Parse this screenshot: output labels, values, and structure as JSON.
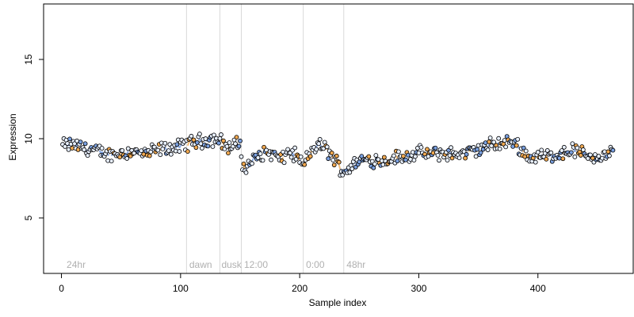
{
  "chart_data": {
    "type": "scatter",
    "xlabel": "Sample index",
    "ylabel": "Expression",
    "xlim": [
      -15,
      480
    ],
    "ylim": [
      1.5,
      18.5
    ],
    "x_ticks": [
      0,
      100,
      200,
      300,
      400
    ],
    "y_ticks": [
      5,
      10,
      15
    ],
    "grid": false,
    "legend": "none",
    "colors": {
      "axis": "#000000",
      "phase_line": "#d9d9d9",
      "phase_text": "#b0b0b0",
      "point_light": "#e8f0ff",
      "point_blue": "#7aa0e0",
      "point_orange": "#f0a850",
      "segment_blue": "#7aa0e0",
      "segment_orange": "#f0b060"
    },
    "phase_lines": [
      105,
      133,
      151,
      203,
      237
    ],
    "phase_labels": [
      {
        "text": "24hr",
        "x": 3
      },
      {
        "text": "dawn",
        "x": 106
      },
      {
        "text": "dusk",
        "x": 133
      },
      {
        "text": "12:00",
        "x": 152
      },
      {
        "text": "0:00",
        "x": 204
      },
      {
        "text": "48hr",
        "x": 238
      }
    ],
    "series_anchor_x": [
      0,
      10,
      20,
      30,
      40,
      50,
      60,
      70,
      80,
      90,
      100,
      110,
      120,
      130,
      135,
      140,
      145,
      150,
      152,
      155,
      160,
      165,
      170,
      175,
      180,
      185,
      190,
      195,
      200,
      203,
      205,
      210,
      215,
      220,
      225,
      230,
      235,
      238,
      245,
      250,
      260,
      270,
      280,
      290,
      300,
      310,
      320,
      330,
      340,
      350,
      360,
      370,
      380,
      390,
      395,
      400,
      410,
      420,
      430,
      440,
      450,
      460,
      463
    ],
    "series_anchor_y": [
      9.6,
      9.6,
      9.4,
      9.2,
      9.0,
      9.1,
      9.2,
      9.0,
      9.3,
      9.4,
      9.5,
      9.8,
      9.9,
      10.0,
      9.8,
      9.4,
      9.6,
      9.7,
      8.3,
      8.1,
      8.6,
      8.9,
      9.1,
      9.1,
      8.9,
      8.6,
      9.2,
      9.0,
      8.7,
      8.2,
      8.6,
      9.2,
      9.6,
      9.5,
      9.1,
      8.6,
      8.1,
      7.9,
      8.4,
      8.6,
      8.7,
      8.6,
      8.8,
      8.9,
      9.1,
      9.0,
      9.1,
      9.0,
      9.1,
      9.3,
      9.6,
      9.7,
      9.8,
      9.0,
      8.8,
      8.9,
      8.9,
      9.1,
      9.3,
      9.0,
      8.8,
      9.0,
      9.3
    ],
    "n_points": 463
  }
}
